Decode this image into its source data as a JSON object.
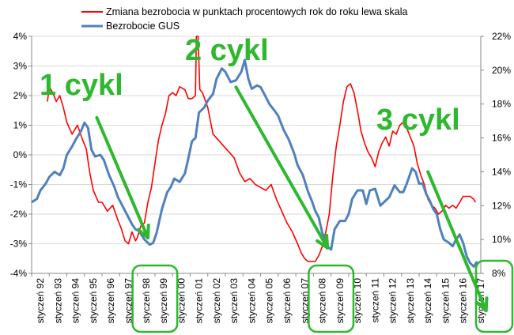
{
  "chart_data": {
    "type": "line",
    "x_unit": "month (year.fraction)",
    "legend": {
      "placement": "top",
      "entries": [
        "Zmiana bezrobocia w punktach procentowych rok do roku lewa skala",
        "Bezrobocie GUS"
      ]
    },
    "left_axis": {
      "ylim": [
        -4,
        4
      ],
      "ticks": [
        "-4%",
        "-3%",
        "-2%",
        "-1%",
        "0%",
        "1%",
        "2%",
        "3%",
        "4%"
      ]
    },
    "right_axis": {
      "ylim": [
        8,
        22
      ],
      "ticks": [
        "8%",
        "10%",
        "12%",
        "14%",
        "16%",
        "18%",
        "20%",
        "22%"
      ]
    },
    "x_axis": {
      "range": [
        1992.0,
        2017.5
      ],
      "tick_years": [
        1992,
        1993,
        1994,
        1995,
        1996,
        1997,
        1998,
        1999,
        2000,
        2001,
        2002,
        2003,
        2004,
        2005,
        2006,
        2007,
        2008,
        2009,
        2010,
        2011,
        2012,
        2013,
        2014,
        2015,
        2016,
        2017
      ],
      "tick_labels": [
        "styczeń 92",
        "styczeń 93",
        "styczeń 94",
        "styczeń 95",
        "styczeń 96",
        "styczeń 97",
        "styczeń 98",
        "styczeń 99",
        "styczeń 00",
        "styczeń 01",
        "styczeń 02",
        "styczeń 03",
        "styczeń 04",
        "styczeń 05",
        "styczeń 06",
        "styczeń 07",
        "styczeń 08",
        "styczeń 09",
        "styczeń 10",
        "styczeń 11",
        "styczeń 12",
        "styczeń 13",
        "styczeń 14",
        "styczeń 15",
        "styczeń 16",
        "styczeń 17"
      ]
    },
    "grid": "horizontal",
    "series": [
      {
        "name": "Zmiana bezrobocia w punktach procentowych rok do roku lewa skala",
        "axis": "left",
        "color": "#ff0000",
        "points": [
          [
            1992.9,
            1.8
          ],
          [
            1993.0,
            2.3
          ],
          [
            1993.2,
            2.1
          ],
          [
            1993.4,
            1.8
          ],
          [
            1993.6,
            2.0
          ],
          [
            1993.8,
            1.6
          ],
          [
            1994.0,
            1.1
          ],
          [
            1994.3,
            0.7
          ],
          [
            1994.6,
            1.0
          ],
          [
            1994.9,
            0.5
          ],
          [
            1995.1,
            0.2
          ],
          [
            1995.3,
            -0.6
          ],
          [
            1995.5,
            -1.2
          ],
          [
            1995.8,
            -1.6
          ],
          [
            1996.0,
            -1.6
          ],
          [
            1996.3,
            -1.9
          ],
          [
            1996.6,
            -1.7
          ],
          [
            1996.9,
            -2.2
          ],
          [
            1997.1,
            -2.5
          ],
          [
            1997.3,
            -2.9
          ],
          [
            1997.5,
            -3.0
          ],
          [
            1997.7,
            -2.6
          ],
          [
            1997.9,
            -2.9
          ],
          [
            1998.0,
            -2.8
          ],
          [
            1998.2,
            -2.4
          ],
          [
            1998.4,
            -2.3
          ],
          [
            1998.6,
            -1.6
          ],
          [
            1998.8,
            -1.1
          ],
          [
            1999.0,
            -0.3
          ],
          [
            1999.2,
            0.5
          ],
          [
            1999.4,
            1.0
          ],
          [
            1999.6,
            1.4
          ],
          [
            1999.8,
            2.0
          ],
          [
            2000.0,
            2.1
          ],
          [
            2000.2,
            2.0
          ],
          [
            2000.4,
            2.3
          ],
          [
            2000.7,
            2.2
          ],
          [
            2000.9,
            1.9
          ],
          [
            2001.1,
            1.9
          ],
          [
            2001.3,
            2.0
          ],
          [
            2001.35,
            4.0
          ],
          [
            2001.45,
            4.0
          ],
          [
            2001.55,
            2.2
          ],
          [
            2001.7,
            2.1
          ],
          [
            2002.0,
            1.6
          ],
          [
            2002.3,
            0.7
          ],
          [
            2002.6,
            0.5
          ],
          [
            2002.9,
            0.3
          ],
          [
            2003.2,
            0.1
          ],
          [
            2003.5,
            -0.1
          ],
          [
            2003.8,
            -0.6
          ],
          [
            2004.1,
            -0.9
          ],
          [
            2004.4,
            -0.8
          ],
          [
            2004.7,
            -1.0
          ],
          [
            2005.0,
            -1.1
          ],
          [
            2005.3,
            -1.2
          ],
          [
            2005.6,
            -1.0
          ],
          [
            2005.9,
            -1.5
          ],
          [
            2006.2,
            -1.9
          ],
          [
            2006.5,
            -2.3
          ],
          [
            2006.8,
            -2.6
          ],
          [
            2007.1,
            -3.0
          ],
          [
            2007.3,
            -3.3
          ],
          [
            2007.5,
            -3.5
          ],
          [
            2007.7,
            -3.6
          ],
          [
            2007.9,
            -3.6
          ],
          [
            2008.1,
            -3.6
          ],
          [
            2008.3,
            -3.4
          ],
          [
            2008.5,
            -3.1
          ],
          [
            2008.7,
            -2.6
          ],
          [
            2008.9,
            -2.0
          ],
          [
            2009.1,
            -0.7
          ],
          [
            2009.3,
            0.3
          ],
          [
            2009.5,
            1.0
          ],
          [
            2009.7,
            1.8
          ],
          [
            2009.9,
            2.3
          ],
          [
            2010.1,
            2.4
          ],
          [
            2010.3,
            2.1
          ],
          [
            2010.5,
            1.5
          ],
          [
            2010.7,
            0.8
          ],
          [
            2010.9,
            0.4
          ],
          [
            2011.1,
            0.1
          ],
          [
            2011.3,
            -0.1
          ],
          [
            2011.5,
            -0.4
          ],
          [
            2011.7,
            0.1
          ],
          [
            2011.9,
            0.4
          ],
          [
            2012.1,
            0.6
          ],
          [
            2012.3,
            0.3
          ],
          [
            2012.5,
            0.8
          ],
          [
            2012.7,
            0.7
          ],
          [
            2012.9,
            1.0
          ],
          [
            2013.1,
            1.1
          ],
          [
            2013.3,
            0.9
          ],
          [
            2013.5,
            0.6
          ],
          [
            2013.7,
            0.3
          ],
          [
            2013.9,
            -0.3
          ],
          [
            2014.1,
            -0.7
          ],
          [
            2014.3,
            -1.0
          ],
          [
            2014.5,
            -1.5
          ],
          [
            2014.7,
            -1.7
          ],
          [
            2014.9,
            -1.8
          ],
          [
            2015.1,
            -2.0
          ],
          [
            2015.3,
            -1.9
          ],
          [
            2015.5,
            -1.7
          ],
          [
            2015.7,
            -1.8
          ],
          [
            2015.9,
            -1.7
          ],
          [
            2016.1,
            -1.8
          ],
          [
            2016.3,
            -1.6
          ],
          [
            2016.5,
            -1.4
          ],
          [
            2016.7,
            -1.4
          ],
          [
            2016.9,
            -1.4
          ],
          [
            2017.1,
            -1.5
          ],
          [
            2017.2,
            -1.6
          ]
        ]
      },
      {
        "name": "Bezrobocie GUS",
        "axis": "right",
        "color": "#4f81bd",
        "points": [
          [
            1992.0,
            12.2
          ],
          [
            1992.3,
            12.4
          ],
          [
            1992.5,
            12.9
          ],
          [
            1992.8,
            13.3
          ],
          [
            1993.0,
            13.7
          ],
          [
            1993.3,
            14.0
          ],
          [
            1993.6,
            13.8
          ],
          [
            1993.8,
            14.2
          ],
          [
            1994.0,
            15.0
          ],
          [
            1994.3,
            15.5
          ],
          [
            1994.5,
            15.9
          ],
          [
            1994.8,
            16.4
          ],
          [
            1995.0,
            16.9
          ],
          [
            1995.2,
            16.6
          ],
          [
            1995.4,
            15.3
          ],
          [
            1995.6,
            14.9
          ],
          [
            1995.9,
            15.0
          ],
          [
            1996.1,
            14.7
          ],
          [
            1996.4,
            13.8
          ],
          [
            1996.7,
            13.1
          ],
          [
            1996.9,
            12.5
          ],
          [
            1997.1,
            12.1
          ],
          [
            1997.4,
            11.5
          ],
          [
            1997.7,
            10.9
          ],
          [
            1997.9,
            10.6
          ],
          [
            1998.1,
            10.5
          ],
          [
            1998.4,
            10.0
          ],
          [
            1998.7,
            9.7
          ],
          [
            1998.9,
            9.8
          ],
          [
            1999.1,
            10.4
          ],
          [
            1999.4,
            11.8
          ],
          [
            1999.7,
            12.8
          ],
          [
            1999.9,
            13.1
          ],
          [
            2000.1,
            13.6
          ],
          [
            2000.4,
            13.4
          ],
          [
            2000.7,
            13.9
          ],
          [
            2000.9,
            14.8
          ],
          [
            2001.1,
            15.8
          ],
          [
            2001.3,
            16.0
          ],
          [
            2001.5,
            17.5
          ],
          [
            2001.8,
            17.8
          ],
          [
            2002.0,
            18.2
          ],
          [
            2002.3,
            18.6
          ],
          [
            2002.5,
            19.5
          ],
          [
            2002.8,
            20.1
          ],
          [
            2003.0,
            19.9
          ],
          [
            2003.3,
            19.3
          ],
          [
            2003.6,
            19.4
          ],
          [
            2003.9,
            19.9
          ],
          [
            2004.1,
            20.6
          ],
          [
            2004.3,
            19.5
          ],
          [
            2004.5,
            18.9
          ],
          [
            2004.8,
            19.1
          ],
          [
            2005.0,
            19.0
          ],
          [
            2005.3,
            18.4
          ],
          [
            2005.5,
            18.0
          ],
          [
            2005.8,
            17.6
          ],
          [
            2006.0,
            17.3
          ],
          [
            2006.3,
            16.5
          ],
          [
            2006.6,
            15.9
          ],
          [
            2006.9,
            15.1
          ],
          [
            2007.1,
            14.4
          ],
          [
            2007.4,
            13.8
          ],
          [
            2007.7,
            12.8
          ],
          [
            2007.9,
            12.3
          ],
          [
            2008.1,
            11.7
          ],
          [
            2008.3,
            11.3
          ],
          [
            2008.5,
            10.4
          ],
          [
            2008.8,
            9.6
          ],
          [
            2009.0,
            9.4
          ],
          [
            2009.2,
            10.6
          ],
          [
            2009.5,
            11.1
          ],
          [
            2009.8,
            11.1
          ],
          [
            2010.0,
            11.5
          ],
          [
            2010.2,
            12.4
          ],
          [
            2010.5,
            12.9
          ],
          [
            2010.8,
            12.9
          ],
          [
            2011.0,
            12.1
          ],
          [
            2011.2,
            12.9
          ],
          [
            2011.5,
            13.0
          ],
          [
            2011.8,
            12.0
          ],
          [
            2012.0,
            12.2
          ],
          [
            2012.3,
            12.5
          ],
          [
            2012.6,
            13.2
          ],
          [
            2012.9,
            12.8
          ],
          [
            2013.1,
            12.8
          ],
          [
            2013.3,
            13.3
          ],
          [
            2013.6,
            14.2
          ],
          [
            2013.8,
            14.0
          ],
          [
            2014.0,
            13.3
          ],
          [
            2014.2,
            13.3
          ],
          [
            2014.4,
            12.7
          ],
          [
            2014.6,
            12.3
          ],
          [
            2014.8,
            11.8
          ],
          [
            2015.0,
            11.5
          ],
          [
            2015.2,
            10.6
          ],
          [
            2015.4,
            10.0
          ],
          [
            2015.7,
            9.8
          ],
          [
            2015.9,
            9.6
          ],
          [
            2016.1,
            10.0
          ],
          [
            2016.3,
            10.3
          ],
          [
            2016.5,
            9.8
          ],
          [
            2016.7,
            9.0
          ],
          [
            2016.9,
            8.6
          ],
          [
            2017.1,
            8.4
          ],
          [
            2017.3,
            8.7
          ]
        ]
      }
    ],
    "annotations": {
      "cycle_labels": [
        "1 cykl",
        "2 cykl",
        "3 cykl"
      ],
      "trend_arrows": [
        {
          "from": [
            1995.7,
            17.2
          ],
          "to": [
            1998.6,
            10.1
          ]
        },
        {
          "from": [
            2003.6,
            19.0
          ],
          "to": [
            2008.8,
            9.5
          ]
        },
        {
          "from": [
            2014.5,
            14.0
          ],
          "to": [
            2017.8,
            5.8
          ]
        }
      ],
      "highlighted_ticks": [
        1998,
        1999,
        2008,
        2009
      ],
      "highlighted_right_tick": "8%",
      "color": "#2eb82e"
    }
  }
}
